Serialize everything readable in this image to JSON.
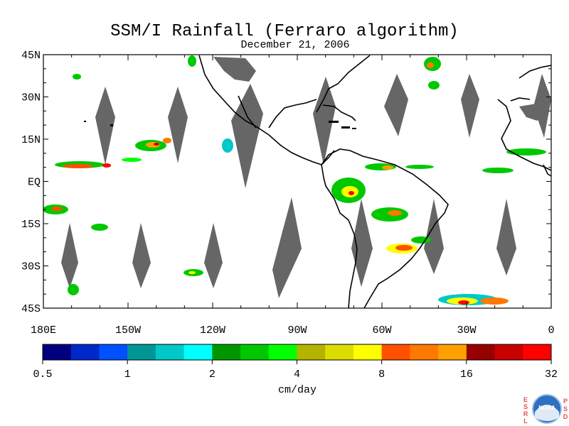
{
  "title": "SSM/I Rainfall (Ferraro algorithm)",
  "subtitle": "December 21, 2006",
  "map": {
    "lat_labels": [
      "45N",
      "30N",
      "15N",
      "EQ",
      "15S",
      "30S",
      "45S"
    ],
    "lat_values": [
      45,
      30,
      15,
      0,
      -15,
      -30,
      -45
    ],
    "lon_labels": [
      "180E",
      "150W",
      "120W",
      "90W",
      "60W",
      "30W",
      "0"
    ],
    "lon_values": [
      -180,
      -150,
      -120,
      -90,
      -60,
      -30,
      0
    ],
    "extent": {
      "lon_min": -180,
      "lon_max": 0,
      "lat_min": -45,
      "lat_max": 45
    },
    "swath_gap_color": "#666666",
    "land_color": "#ffffff",
    "missing_color": "#666666"
  },
  "colorbar": {
    "colors": [
      "#00007f",
      "#0028c8",
      "#0050ff",
      "#009696",
      "#00c8c8",
      "#00ffff",
      "#009600",
      "#00c800",
      "#00ff00",
      "#b4b400",
      "#dcdc00",
      "#ffff00",
      "#ff5000",
      "#ff7800",
      "#ffa000",
      "#960000",
      "#c80000",
      "#ff0000"
    ],
    "labels": [
      "0.5",
      "1",
      "2",
      "4",
      "8",
      "16",
      "32"
    ],
    "unit": "cm/day"
  },
  "logo": {
    "left_letters": [
      "E",
      "S",
      "R",
      "L"
    ],
    "right_letters": [
      "P",
      "S",
      "D"
    ],
    "name": "NOAA"
  }
}
